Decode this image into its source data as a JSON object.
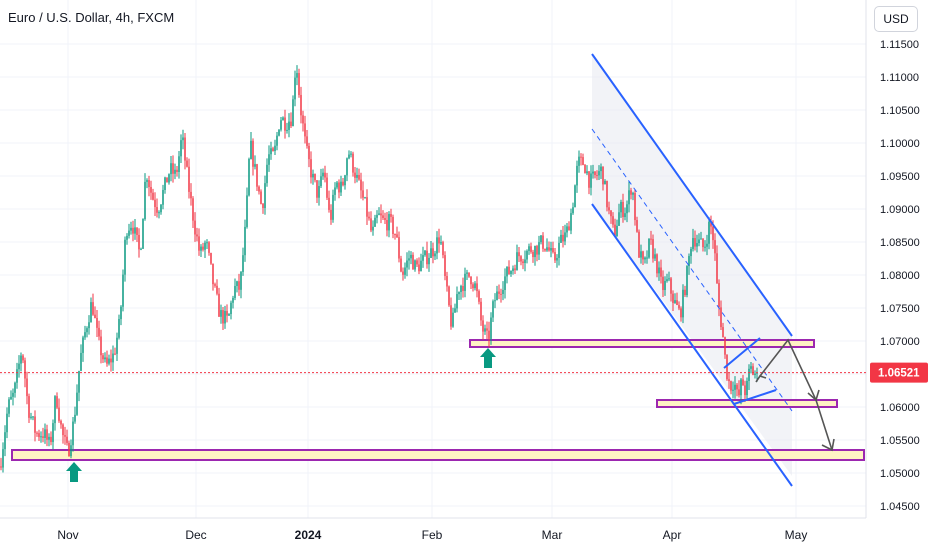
{
  "header": {
    "title": "Euro / U.S. Dollar, 4h, FXCM",
    "currency": "USD"
  },
  "chart_data": {
    "type": "candlestick",
    "ylim": [
      1.0445,
      1.119
    ],
    "yticks": [
      "1.11500",
      "1.11000",
      "1.10500",
      "1.10000",
      "1.09500",
      "1.09000",
      "1.08500",
      "1.08000",
      "1.07500",
      "1.07000",
      "1.06500",
      "1.06000",
      "1.05500",
      "1.05000",
      "1.04500"
    ],
    "xtick_labels": [
      "Nov",
      "Dec",
      "2024",
      "Feb",
      "Mar",
      "Apr",
      "May"
    ],
    "last_price": "1.06521",
    "colors": {
      "up": "#089981",
      "down": "#f23645",
      "price_line": "#f23645",
      "channel": "#2962ff",
      "zone_border": "#9c27b0",
      "zone_fill": "#fff3c4",
      "arrow": "#555555",
      "marker": "#089981"
    },
    "anchors": [
      [
        0,
        1.051
      ],
      [
        8,
        1.06
      ],
      [
        14,
        1.062
      ],
      [
        22,
        1.069
      ],
      [
        28,
        1.06
      ],
      [
        36,
        1.056
      ],
      [
        44,
        1.056
      ],
      [
        50,
        1.054
      ],
      [
        56,
        1.062
      ],
      [
        62,
        1.056
      ],
      [
        68,
        1.053
      ],
      [
        74,
        1.058
      ],
      [
        80,
        1.067
      ],
      [
        86,
        1.072
      ],
      [
        92,
        1.076
      ],
      [
        98,
        1.07
      ],
      [
        106,
        1.066
      ],
      [
        114,
        1.068
      ],
      [
        120,
        1.073
      ],
      [
        126,
        1.087
      ],
      [
        132,
        1.088
      ],
      [
        140,
        1.083
      ],
      [
        146,
        1.096
      ],
      [
        152,
        1.092
      ],
      [
        158,
        1.09
      ],
      [
        164,
        1.093
      ],
      [
        170,
        1.096
      ],
      [
        176,
        1.095
      ],
      [
        182,
        1.101
      ],
      [
        188,
        1.094
      ],
      [
        194,
        1.088
      ],
      [
        200,
        1.083
      ],
      [
        206,
        1.085
      ],
      [
        214,
        1.078
      ],
      [
        220,
        1.074
      ],
      [
        228,
        1.073
      ],
      [
        234,
        1.078
      ],
      [
        240,
        1.078
      ],
      [
        246,
        1.088
      ],
      [
        250,
        1.1
      ],
      [
        256,
        1.095
      ],
      [
        262,
        1.09
      ],
      [
        268,
        1.098
      ],
      [
        274,
        1.098
      ],
      [
        280,
        1.104
      ],
      [
        286,
        1.103
      ],
      [
        292,
        1.104
      ],
      [
        296,
        1.113
      ],
      [
        300,
        1.106
      ],
      [
        306,
        1.099
      ],
      [
        312,
        1.095
      ],
      [
        318,
        1.092
      ],
      [
        324,
        1.096
      ],
      [
        330,
        1.088
      ],
      [
        336,
        1.094
      ],
      [
        342,
        1.093
      ],
      [
        348,
        1.099
      ],
      [
        354,
        1.096
      ],
      [
        360,
        1.093
      ],
      [
        366,
        1.09
      ],
      [
        372,
        1.086
      ],
      [
        378,
        1.089
      ],
      [
        384,
        1.088
      ],
      [
        390,
        1.088
      ],
      [
        396,
        1.086
      ],
      [
        402,
        1.08
      ],
      [
        410,
        1.083
      ],
      [
        416,
        1.081
      ],
      [
        422,
        1.082
      ],
      [
        428,
        1.083
      ],
      [
        434,
        1.084
      ],
      [
        440,
        1.086
      ],
      [
        446,
        1.078
      ],
      [
        452,
        1.072
      ],
      [
        458,
        1.078
      ],
      [
        464,
        1.079
      ],
      [
        470,
        1.08
      ],
      [
        476,
        1.078
      ],
      [
        482,
        1.072
      ],
      [
        488,
        1.07
      ],
      [
        494,
        1.076
      ],
      [
        500,
        1.078
      ],
      [
        506,
        1.08
      ],
      [
        512,
        1.081
      ],
      [
        518,
        1.083
      ],
      [
        524,
        1.083
      ],
      [
        530,
        1.084
      ],
      [
        536,
        1.084
      ],
      [
        542,
        1.085
      ],
      [
        548,
        1.084
      ],
      [
        554,
        1.082
      ],
      [
        560,
        1.085
      ],
      [
        566,
        1.086
      ],
      [
        572,
        1.09
      ],
      [
        578,
        1.097
      ],
      [
        584,
        1.097
      ],
      [
        590,
        1.094
      ],
      [
        596,
        1.095
      ],
      [
        602,
        1.096
      ],
      [
        608,
        1.09
      ],
      [
        614,
        1.086
      ],
      [
        620,
        1.09
      ],
      [
        626,
        1.09
      ],
      [
        632,
        1.094
      ],
      [
        638,
        1.084
      ],
      [
        644,
        1.081
      ],
      [
        650,
        1.085
      ],
      [
        656,
        1.082
      ],
      [
        662,
        1.078
      ],
      [
        668,
        1.079
      ],
      [
        674,
        1.076
      ],
      [
        680,
        1.074
      ],
      [
        686,
        1.079
      ],
      [
        692,
        1.086
      ],
      [
        698,
        1.085
      ],
      [
        704,
        1.084
      ],
      [
        710,
        1.088
      ],
      [
        714,
        1.085
      ],
      [
        718,
        1.076
      ],
      [
        722,
        1.072
      ],
      [
        726,
        1.066
      ],
      [
        730,
        1.063
      ],
      [
        734,
        1.064
      ],
      [
        738,
        1.061
      ],
      [
        742,
        1.064
      ],
      [
        746,
        1.062
      ],
      [
        750,
        1.066
      ],
      [
        754,
        1.065
      ],
      [
        757,
        1.0652
      ]
    ]
  }
}
